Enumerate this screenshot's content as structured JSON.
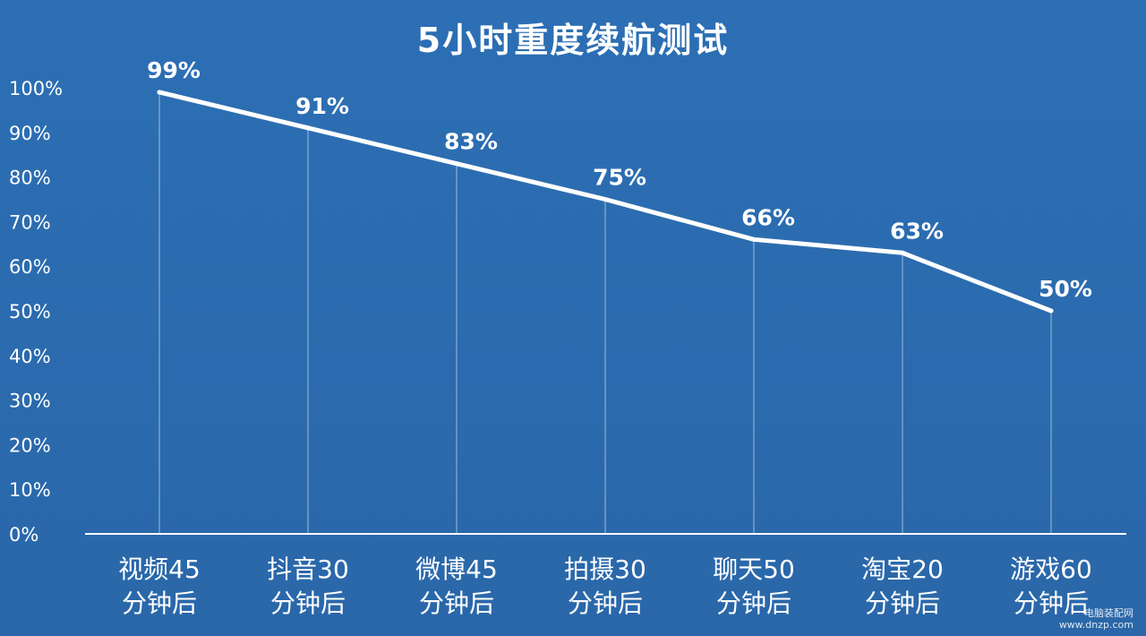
{
  "chart_data": {
    "type": "line",
    "title": "5小时重度续航测试",
    "categories": [
      [
        "视频45",
        "分钟后"
      ],
      [
        "抖音30",
        "分钟后"
      ],
      [
        "微博45",
        "分钟后"
      ],
      [
        "拍摄30",
        "分钟后"
      ],
      [
        "聊天50",
        "分钟后"
      ],
      [
        "淘宝20",
        "分钟后"
      ],
      [
        "游戏60",
        "分钟后"
      ]
    ],
    "values": [
      99,
      91,
      83,
      75,
      66,
      63,
      50
    ],
    "value_labels": [
      "99%",
      "91%",
      "83%",
      "75%",
      "66%",
      "63%",
      "50%"
    ],
    "yticks": [
      "0%",
      "10%",
      "20%",
      "30%",
      "40%",
      "50%",
      "60%",
      "70%",
      "80%",
      "90%",
      "100%"
    ],
    "ylim": [
      0,
      100
    ],
    "xlabel": "",
    "ylabel": "",
    "grid": false,
    "colors": {
      "background": "#2b6cb0",
      "line": "#ffffff",
      "drop_lines": "#ffffff",
      "text": "#ffffff"
    }
  },
  "watermark": {
    "line1": "电脑装配网",
    "line2": "www.dnzp.com"
  }
}
